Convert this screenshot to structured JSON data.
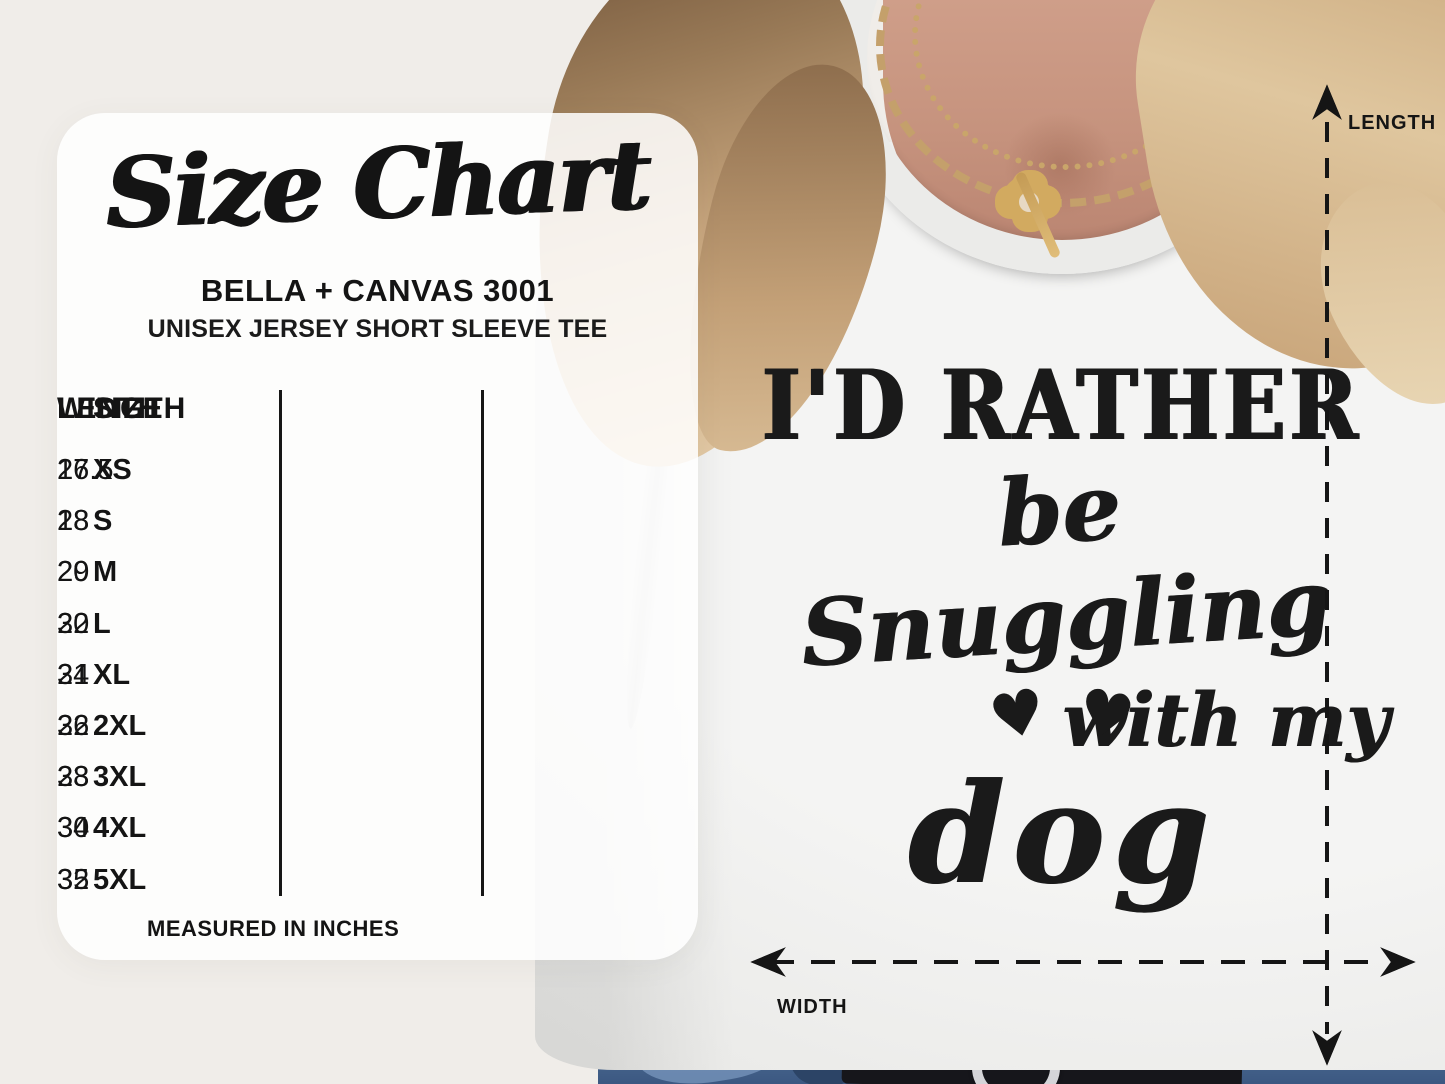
{
  "size_card": {
    "title": "Size Chart",
    "brand": "BELLA + CANVAS 3001",
    "subtitle": "UNISEX JERSEY SHORT SLEEVE TEE",
    "footnote": "MEASURED IN INCHES"
  },
  "chart_data": {
    "type": "table",
    "title": "Size Chart — Bella + Canvas 3001 Unisex Jersey Short Sleeve Tee",
    "units": "inches",
    "columns": [
      "SIZE",
      "WIDTH",
      "LENGTH"
    ],
    "rows": [
      [
        "XS",
        "16.5",
        "27"
      ],
      [
        "S",
        "18",
        "28"
      ],
      [
        "M",
        "20",
        "29"
      ],
      [
        "L",
        "22",
        "30"
      ],
      [
        "XL",
        "24",
        "31"
      ],
      [
        "2XL",
        "26",
        "32"
      ],
      [
        "3XL",
        "28",
        "33"
      ],
      [
        "4XL",
        "30",
        "34"
      ],
      [
        "5XL",
        "32",
        "35"
      ]
    ]
  },
  "measurements": {
    "length_label": "LENGTH",
    "width_label": "WIDTH"
  },
  "tshirt_design": {
    "line1": "I'D RATHER",
    "line2": "be Snuggling",
    "line3": "with my",
    "line4": "dog",
    "heart": "♥"
  },
  "colors": {
    "ink": "#1a1a1a",
    "background_beige": "#f0ede9",
    "card_white": "#ffffff",
    "tee_white": "#f0f0ee",
    "denim_blue": "#49688f",
    "belt_black": "#16161b",
    "gold_chain": "#c9a56a",
    "skin": "#c6937e",
    "hair_blonde": "#d3b288"
  }
}
